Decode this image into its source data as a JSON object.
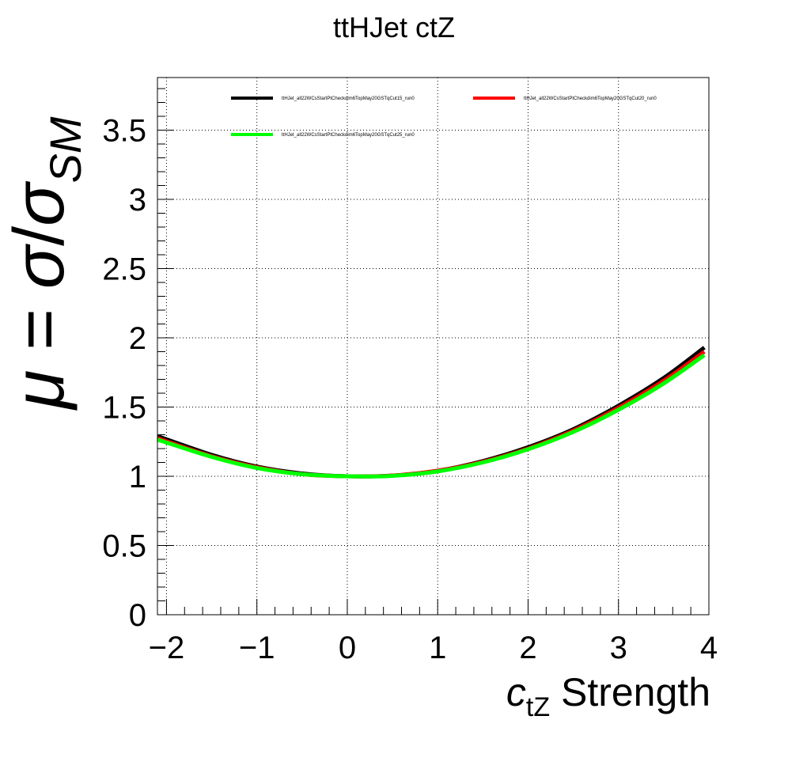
{
  "chart_data": {
    "type": "line",
    "title": "ttHJet ctZ",
    "xlabel": {
      "symbol": "c",
      "subscript": "tZ",
      "suffix": " Strength"
    },
    "ylabel": {
      "mu": "μ",
      "eq": " = ",
      "sigma": "σ",
      "slash": "/",
      "sigma2": "σ",
      "subscript": "SM"
    },
    "xlim": [
      -2.1,
      4.0
    ],
    "ylim": [
      0,
      3.88
    ],
    "x_ticks": [
      -2,
      -1,
      0,
      1,
      2,
      3,
      4
    ],
    "x_tick_labels": [
      "−2",
      "−1",
      "0",
      "1",
      "2",
      "3",
      "4"
    ],
    "y_ticks": [
      0,
      0.5,
      1,
      1.5,
      2,
      2.5,
      3,
      3.5
    ],
    "y_tick_labels": [
      "0",
      "0.5",
      "1",
      "1.5",
      "2",
      "2.5",
      "3",
      "3.5"
    ],
    "grid": true,
    "legend_position": "top",
    "series": [
      {
        "name": "ttHJet_all22WCsStartPtCheckdim6TopMay20GSTqCut15_run0",
        "color": "#000000",
        "x": [
          -2.1,
          -1.5,
          -1.0,
          -0.5,
          0.0,
          0.5,
          1.0,
          1.5,
          2.0,
          2.5,
          3.0,
          3.5,
          3.95
        ],
        "y": [
          1.29,
          1.155,
          1.07,
          1.02,
          1.0,
          1.005,
          1.04,
          1.11,
          1.21,
          1.34,
          1.51,
          1.71,
          1.93
        ]
      },
      {
        "name": "ttHJet_all22WCsStartPtCheckdim6TopMay20GSTqCut20_run0",
        "color": "#ff0000",
        "x": [
          -2.1,
          -1.5,
          -1.0,
          -0.5,
          0.0,
          0.5,
          1.0,
          1.5,
          2.0,
          2.5,
          3.0,
          3.5,
          3.95
        ],
        "y": [
          1.275,
          1.145,
          1.065,
          1.015,
          1.0,
          1.005,
          1.04,
          1.105,
          1.2,
          1.33,
          1.495,
          1.69,
          1.9
        ]
      },
      {
        "name": "ttHJet_all22WCsStartPtCheckdim6TopMay20GSTqCut25_run0",
        "color": "#00ff00",
        "x": [
          -2.1,
          -1.5,
          -1.0,
          -0.5,
          0.0,
          0.5,
          1.0,
          1.5,
          2.0,
          2.5,
          3.0,
          3.5,
          3.95
        ],
        "y": [
          1.265,
          1.14,
          1.06,
          1.015,
          1.0,
          1.003,
          1.035,
          1.1,
          1.195,
          1.32,
          1.48,
          1.67,
          1.875
        ]
      }
    ]
  }
}
